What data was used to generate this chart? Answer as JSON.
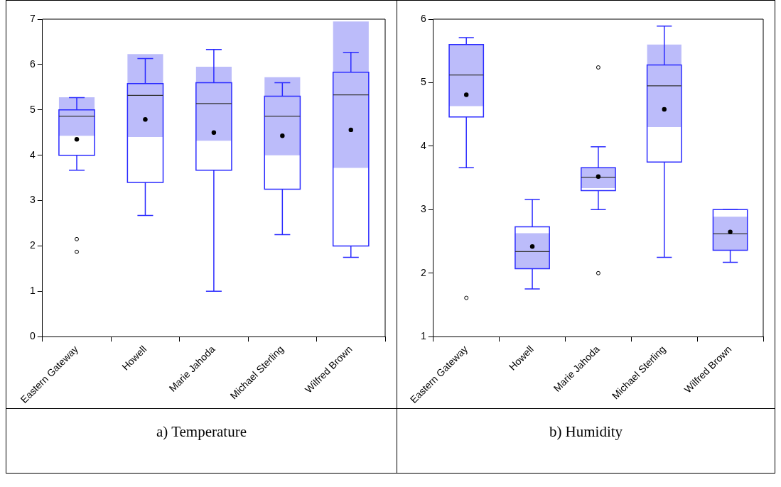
{
  "chart_data": [
    {
      "type": "box",
      "title": "a) Temperature",
      "categories": [
        "Eastern Gateway",
        "Howell",
        "Marie Jahoda",
        "Michael Sterling",
        "Wilfred Brown"
      ],
      "ylim": [
        0,
        7
      ],
      "yticks": [
        0,
        1,
        2,
        3,
        4,
        5,
        6,
        7
      ],
      "series": [
        {
          "type": "bar",
          "color": "#bcbcfa",
          "base": [
            4.43,
            4.4,
            4.32,
            4.0,
            3.72
          ],
          "values": [
            0.85,
            1.83,
            1.63,
            1.72,
            3.23
          ]
        },
        {
          "type": "box",
          "color": "#2a2aff",
          "boxes": [
            {
              "low": 3.67,
              "q1": 4.0,
              "median": 4.86,
              "q3": 5.0,
              "high": 5.27,
              "mean": 4.35,
              "outliers": [
                2.15,
                1.87
              ]
            },
            {
              "low": 2.67,
              "q1": 3.4,
              "median": 5.32,
              "q3": 5.58,
              "high": 6.13,
              "mean": 4.79
            },
            {
              "low": 1.0,
              "q1": 3.67,
              "median": 5.14,
              "q3": 5.6,
              "high": 6.33,
              "mean": 4.5
            },
            {
              "low": 2.25,
              "q1": 3.25,
              "median": 4.86,
              "q3": 5.3,
              "high": 5.6,
              "mean": 4.43
            },
            {
              "low": 1.75,
              "q1": 2.0,
              "median": 5.33,
              "q3": 5.83,
              "high": 6.27,
              "mean": 4.56
            }
          ]
        }
      ]
    },
    {
      "type": "box",
      "title": "b) Humidity",
      "categories": [
        "Eastern Gateway",
        "Howell",
        "Marie Jahoda",
        "Michael Sterling",
        "Wilfred Brown"
      ],
      "ylim": [
        1,
        6
      ],
      "yticks": [
        1,
        2,
        3,
        4,
        5,
        6
      ],
      "series": [
        {
          "type": "bar",
          "color": "#bcbcfa",
          "base": [
            4.63,
            2.07,
            3.34,
            4.3,
            2.36
          ],
          "values": [
            0.97,
            0.56,
            0.32,
            1.3,
            0.53
          ]
        },
        {
          "type": "box",
          "color": "#2a2aff",
          "boxes": [
            {
              "low": 3.66,
              "q1": 4.46,
              "median": 5.12,
              "q3": 5.6,
              "high": 5.71,
              "mean": 4.81,
              "outliers": [
                1.61
              ]
            },
            {
              "low": 1.75,
              "q1": 2.07,
              "median": 2.34,
              "q3": 2.73,
              "high": 3.16,
              "mean": 2.42
            },
            {
              "low": 3.0,
              "q1": 3.3,
              "median": 3.51,
              "q3": 3.66,
              "high": 3.99,
              "mean": 3.52,
              "outliers": [
                5.24,
                2.0
              ]
            },
            {
              "low": 2.25,
              "q1": 3.75,
              "median": 4.95,
              "q3": 5.28,
              "high": 5.89,
              "mean": 4.58
            },
            {
              "low": 2.17,
              "q1": 2.36,
              "median": 2.62,
              "q3": 3.0,
              "high": 3.0,
              "mean": 2.65
            }
          ]
        }
      ]
    }
  ]
}
